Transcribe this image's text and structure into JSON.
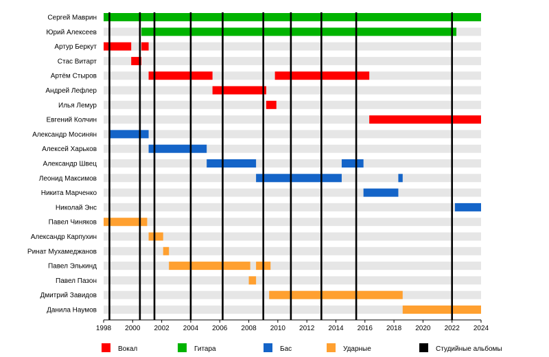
{
  "chart_data": {
    "type": "timeline",
    "x_range": [
      1998,
      2024
    ],
    "x_ticks": [
      "1998",
      "2000",
      "2002",
      "2004",
      "2006",
      "2008",
      "2010",
      "2012",
      "2014",
      "2016",
      "2018",
      "2020",
      "2022",
      "2024"
    ],
    "album_years": [
      1998.4,
      2000.5,
      2001.5,
      2004.0,
      2006.2,
      2009.0,
      2010.9,
      2013.0,
      2015.4,
      2022.0
    ],
    "roles": {
      "vocals": {
        "label": "Вокал",
        "color": "#ff0000"
      },
      "guitar": {
        "label": "Гитара",
        "color": "#00b300"
      },
      "bass": {
        "label": "Бас",
        "color": "#1464c8"
      },
      "drums": {
        "label": "Ударные",
        "color": "#ffa030"
      },
      "albums": {
        "label": "Студийные альбомы",
        "color": "#000000"
      }
    },
    "members": [
      {
        "name": "Сергей Маврин",
        "spans": [
          {
            "role": "guitar",
            "start": 1998.0,
            "end": 2024.0
          }
        ]
      },
      {
        "name": "Юрий Алексеев",
        "spans": [
          {
            "role": "guitar",
            "start": 2000.6,
            "end": 2022.3
          }
        ]
      },
      {
        "name": "Артур Беркут",
        "spans": [
          {
            "role": "vocals",
            "start": 1998.0,
            "end": 1999.9
          },
          {
            "role": "vocals",
            "start": 2000.6,
            "end": 2001.1
          }
        ]
      },
      {
        "name": "Стас Витарт",
        "spans": [
          {
            "role": "vocals",
            "start": 1999.9,
            "end": 2000.6
          }
        ]
      },
      {
        "name": "Артём Стыров",
        "spans": [
          {
            "role": "vocals",
            "start": 2001.1,
            "end": 2005.5
          },
          {
            "role": "vocals",
            "start": 2009.8,
            "end": 2016.3
          }
        ]
      },
      {
        "name": "Андрей Лефлер",
        "spans": [
          {
            "role": "vocals",
            "start": 2005.5,
            "end": 2009.2
          }
        ]
      },
      {
        "name": "Илья Лемур",
        "spans": [
          {
            "role": "vocals",
            "start": 2009.2,
            "end": 2009.9
          }
        ]
      },
      {
        "name": "Евгений Колчин",
        "spans": [
          {
            "role": "vocals",
            "start": 2016.3,
            "end": 2024.0
          }
        ]
      },
      {
        "name": "Александр Мосинян",
        "spans": [
          {
            "role": "bass",
            "start": 1998.4,
            "end": 2001.1
          }
        ]
      },
      {
        "name": "Алексей Харьков",
        "spans": [
          {
            "role": "bass",
            "start": 2001.1,
            "end": 2005.1
          }
        ]
      },
      {
        "name": "Александр Швец",
        "spans": [
          {
            "role": "bass",
            "start": 2005.1,
            "end": 2008.5
          },
          {
            "role": "bass",
            "start": 2014.4,
            "end": 2015.9
          }
        ]
      },
      {
        "name": "Леонид Максимов",
        "spans": [
          {
            "role": "bass",
            "start": 2008.5,
            "end": 2014.4
          },
          {
            "role": "bass",
            "start": 2018.3,
            "end": 2018.6
          }
        ]
      },
      {
        "name": "Никита Марченко",
        "spans": [
          {
            "role": "bass",
            "start": 2015.9,
            "end": 2018.3
          }
        ]
      },
      {
        "name": "Николай Энс",
        "spans": [
          {
            "role": "bass",
            "start": 2022.2,
            "end": 2024.0
          }
        ]
      },
      {
        "name": "Павел Чиняков",
        "spans": [
          {
            "role": "drums",
            "start": 1998.0,
            "end": 2001.0
          }
        ]
      },
      {
        "name": "Александр Карпухин",
        "spans": [
          {
            "role": "drums",
            "start": 2001.1,
            "end": 2002.1
          }
        ]
      },
      {
        "name": "Ринат Мухамеджанов",
        "spans": [
          {
            "role": "drums",
            "start": 2002.1,
            "end": 2002.5
          }
        ]
      },
      {
        "name": "Павел Элькинд",
        "spans": [
          {
            "role": "drums",
            "start": 2002.5,
            "end": 2008.1
          },
          {
            "role": "drums",
            "start": 2008.5,
            "end": 2009.5
          }
        ]
      },
      {
        "name": "Павел Пазон",
        "spans": [
          {
            "role": "drums",
            "start": 2008.0,
            "end": 2008.5
          }
        ]
      },
      {
        "name": "Дмитрий Завидов",
        "spans": [
          {
            "role": "drums",
            "start": 2009.4,
            "end": 2018.6
          }
        ]
      },
      {
        "name": "Данила Наумов",
        "spans": [
          {
            "role": "drums",
            "start": 2018.6,
            "end": 2024.0
          }
        ]
      }
    ],
    "legend_order": [
      "vocals",
      "guitar",
      "bass",
      "drums",
      "albums"
    ],
    "legend_position": "bottom"
  }
}
